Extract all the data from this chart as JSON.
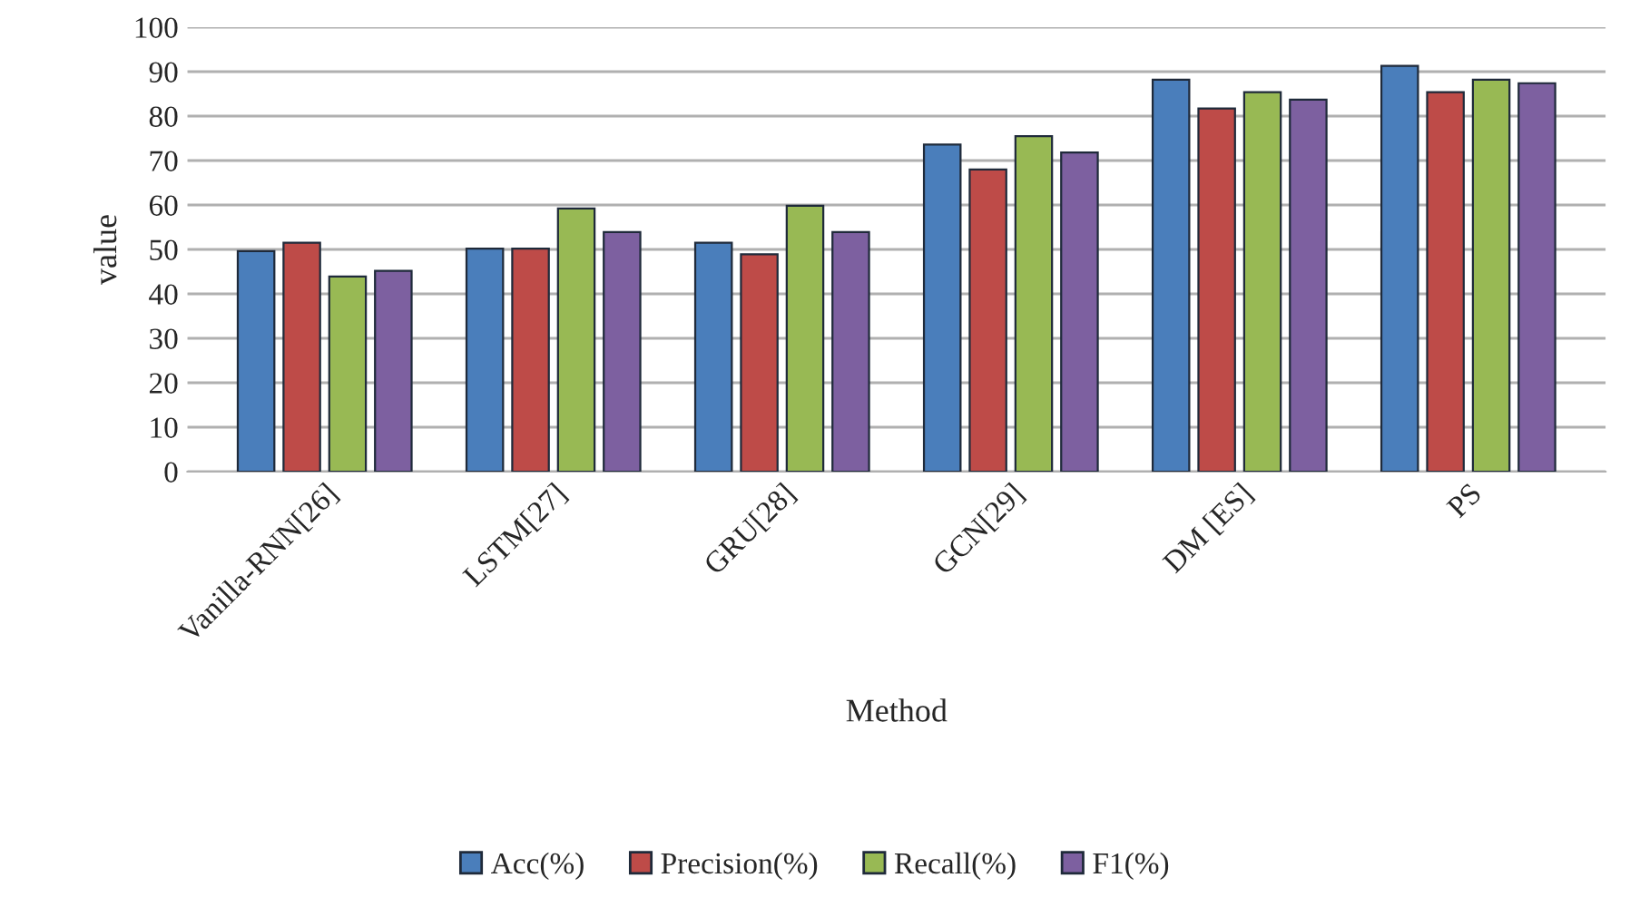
{
  "chart_data": {
    "type": "bar",
    "xlabel": "Method",
    "ylabel": "value",
    "categories": [
      "Vanilla-RNN[26]",
      "LSTM[27]",
      "GRU[28]",
      "GCN[29]",
      "DM [ES]",
      "PS"
    ],
    "series": [
      {
        "name": "Acc(%)",
        "color": "#4a7ebb",
        "values": [
          49.6,
          50.2,
          51.5,
          73.6,
          88.2,
          91.3
        ]
      },
      {
        "name": "Precision(%)",
        "color": "#be4b48",
        "values": [
          51.5,
          50.2,
          48.9,
          68.0,
          81.7,
          85.4
        ]
      },
      {
        "name": "Recall(%)",
        "color": "#98b954",
        "values": [
          43.9,
          59.2,
          59.8,
          75.5,
          85.4,
          88.2
        ]
      },
      {
        "name": "F1(%)",
        "color": "#7d60a0",
        "values": [
          45.2,
          53.9,
          53.9,
          71.8,
          83.7,
          87.4
        ]
      }
    ],
    "ylim": [
      0,
      100
    ],
    "yticks": [
      0,
      10,
      20,
      30,
      40,
      50,
      60,
      70,
      80,
      90,
      100
    ],
    "grid": "y",
    "legend": "bottom"
  }
}
